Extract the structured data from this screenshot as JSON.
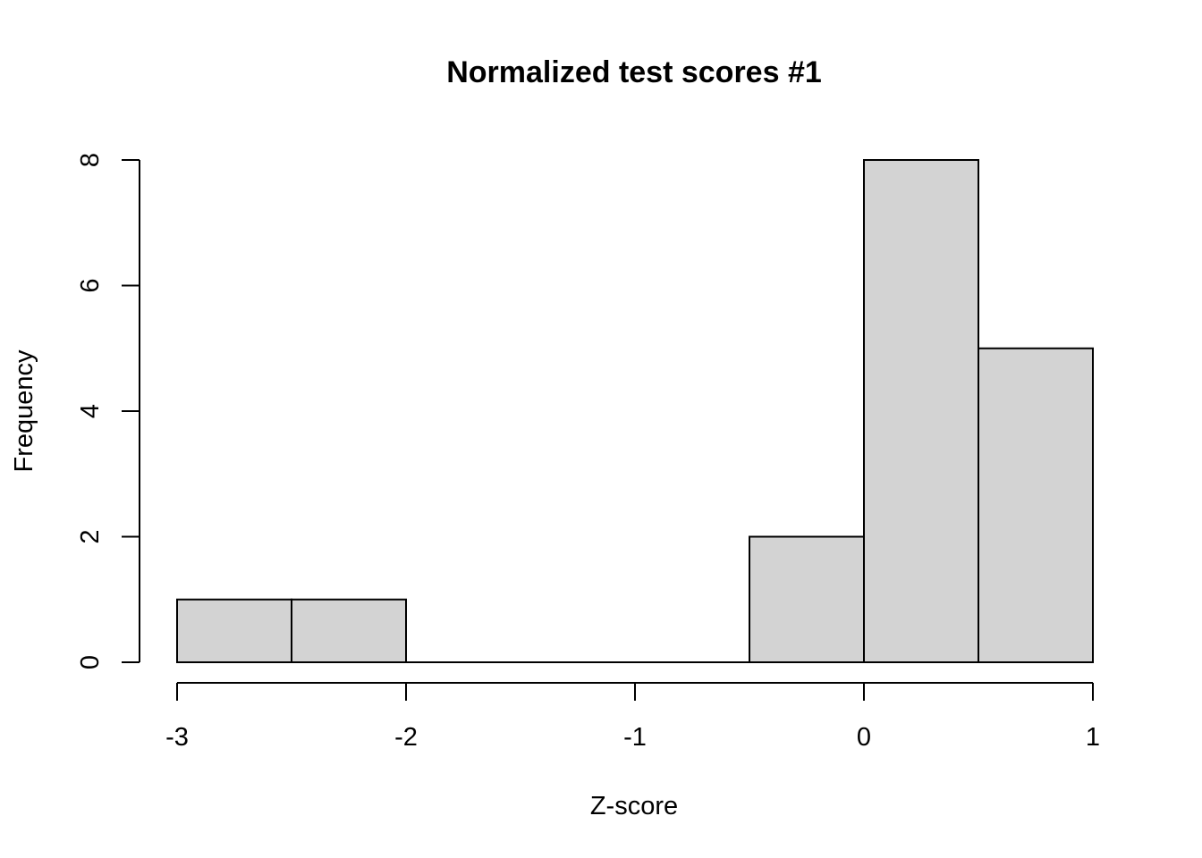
{
  "chart_data": {
    "type": "bar",
    "title": "Normalized test scores #1",
    "xlabel": "Z-score",
    "ylabel": "Frequency",
    "bins": [
      {
        "x0": -3.0,
        "x1": -2.5,
        "count": 1
      },
      {
        "x0": -2.5,
        "x1": -2.0,
        "count": 1
      },
      {
        "x0": -2.0,
        "x1": -1.5,
        "count": 0
      },
      {
        "x0": -1.5,
        "x1": -1.0,
        "count": 0
      },
      {
        "x0": -1.0,
        "x1": -0.5,
        "count": 0
      },
      {
        "x0": -0.5,
        "x1": 0.0,
        "count": 2
      },
      {
        "x0": 0.0,
        "x1": 0.5,
        "count": 8
      },
      {
        "x0": 0.5,
        "x1": 1.0,
        "count": 5
      }
    ],
    "x_ticks": [
      {
        "value": -3,
        "label": "-3"
      },
      {
        "value": -2,
        "label": "-2"
      },
      {
        "value": -1,
        "label": "-1"
      },
      {
        "value": 0,
        "label": "0"
      },
      {
        "value": 1,
        "label": "1"
      }
    ],
    "y_ticks": [
      {
        "value": 0,
        "label": "0"
      },
      {
        "value": 2,
        "label": "2"
      },
      {
        "value": 4,
        "label": "4"
      },
      {
        "value": 6,
        "label": "6"
      },
      {
        "value": 8,
        "label": "8"
      }
    ],
    "xlim": [
      -3,
      1
    ],
    "ylim": [
      0,
      8
    ],
    "grid": false,
    "legend": "none",
    "bar_color": "#d3d3d3",
    "border_color": "#000000"
  }
}
